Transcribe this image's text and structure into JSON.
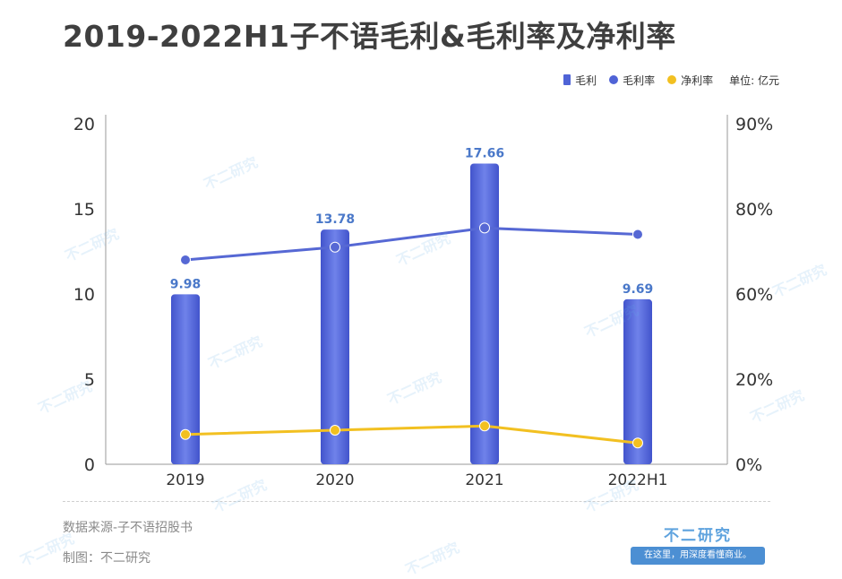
{
  "title": "2019-2022H1子不语毛利&毛利率及净利率",
  "legend": {
    "items": [
      {
        "label": "毛利",
        "color": "#4f63d6",
        "shape": "bar"
      },
      {
        "label": "毛利率",
        "color": "#4f63d6",
        "shape": "dot"
      },
      {
        "label": "净利率",
        "color": "#f2c021",
        "shape": "dot"
      }
    ],
    "unit": "单位: 亿元"
  },
  "chart_data": {
    "type": "bar",
    "categories": [
      "2019",
      "2020",
      "2021",
      "2022H1"
    ],
    "series": [
      {
        "name": "毛利",
        "type": "bar",
        "axis": "left",
        "color": "#4f63d6",
        "values": [
          9.98,
          13.78,
          17.66,
          9.69
        ],
        "labels": [
          "9.98",
          "13.78",
          "17.66",
          "9.69"
        ]
      },
      {
        "name": "毛利率",
        "type": "line",
        "axis": "right",
        "color": "#5668d4",
        "values": [
          68.0,
          71.0,
          75.5,
          74.0
        ]
      },
      {
        "name": "净利率",
        "type": "line",
        "axis": "right",
        "color": "#f2c021",
        "values": [
          7.0,
          8.0,
          9.0,
          5.0
        ]
      }
    ],
    "y_left": {
      "ylim": [
        0,
        20
      ],
      "ticks": [
        "0",
        "5",
        "10",
        "15",
        "20"
      ]
    },
    "y_right": {
      "ylim": [
        0,
        80
      ],
      "ticks": [
        "0%",
        "20%",
        "60%",
        "80%",
        "90%"
      ]
    },
    "grid": false
  },
  "footer": {
    "source": "数据来源-子不语招股书",
    "maker": "制图：不二研究",
    "brand": "不二研究",
    "slogan": "在这里，用深度看懂商业。"
  },
  "watermark": "不二研究"
}
